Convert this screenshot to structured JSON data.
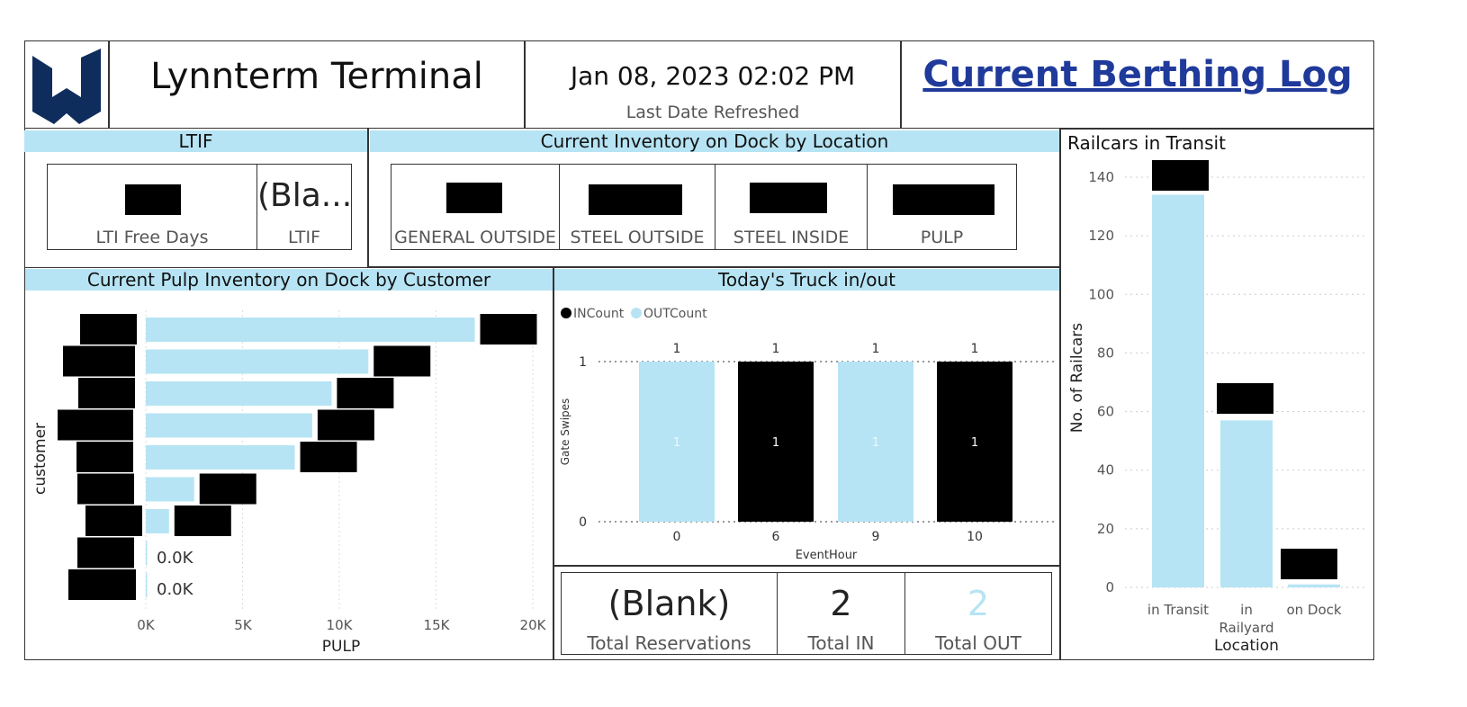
{
  "header": {
    "terminal_name": "Lynnterm Terminal",
    "datetime": "Jan 08, 2023 02:02 PM",
    "datetime_caption": "Last Date Refreshed",
    "berthing_link": "Current Berthing Log",
    "logo_color": "#0f2d5c"
  },
  "ltif": {
    "title": "LTIF",
    "free_days_label": "LTI Free Days",
    "ltif_value": "(Bla...",
    "ltif_label": "LTIF"
  },
  "inventory": {
    "title": "Current Inventory on Dock by Location",
    "locations": [
      "GENERAL OUTSIDE",
      "STEEL OUTSIDE",
      "STEEL INSIDE",
      "PULP"
    ]
  },
  "pulp": {
    "title": "Current Pulp Inventory on Dock by Customer",
    "ylabel": "customer",
    "xlabel": "PULP",
    "xticks": [
      "0K",
      "5K",
      "10K",
      "15K",
      "20K"
    ],
    "zero_labels": [
      "0.0K",
      "0.0K"
    ]
  },
  "truck": {
    "title": "Today's Truck in/out",
    "legend_in": "INCount",
    "legend_out": "OUTCount",
    "ylabel": "Gate Swipes",
    "xlabel": "EventHour"
  },
  "totals": {
    "reservations_value": "(Blank)",
    "reservations_label": "Total Reservations",
    "in_value": "2",
    "in_label": "Total IN",
    "out_value": "2",
    "out_label": "Total OUT"
  },
  "railcars": {
    "title": "Railcars in Transit",
    "ylabel": "No. of Railcars",
    "xlabel": "Location"
  },
  "colors": {
    "light_blue": "#b6e4f4",
    "black": "#000000"
  },
  "chart_data": [
    {
      "type": "bar",
      "orientation": "horizontal",
      "title": "Current Pulp Inventory on Dock by Customer",
      "xlabel": "PULP",
      "ylabel": "customer",
      "values": [
        17000,
        11500,
        9600,
        8600,
        7700,
        2500,
        1200,
        0,
        0
      ],
      "xlim": [
        0,
        20000
      ],
      "color": "#b6e4f4"
    },
    {
      "type": "bar",
      "title": "Today's Truck in/out",
      "xlabel": "EventHour",
      "ylabel": "Gate Swipes",
      "categories": [
        "0",
        "6",
        "9",
        "10"
      ],
      "series": [
        {
          "name": "INCount",
          "values": [
            0,
            1,
            0,
            1
          ],
          "color": "#000000"
        },
        {
          "name": "OUTCount",
          "values": [
            1,
            0,
            1,
            0
          ],
          "color": "#b6e4f4"
        }
      ],
      "ylim": [
        0,
        1
      ],
      "yticks": [
        0,
        1
      ],
      "legend": "top-left"
    },
    {
      "type": "bar",
      "title": "Railcars in Transit",
      "xlabel": "Location",
      "ylabel": "No. of Railcars",
      "categories": [
        "in Transit",
        "in Railyard",
        "on Dock"
      ],
      "values": [
        134,
        57,
        1
      ],
      "ylim": [
        0,
        145
      ],
      "yticks": [
        0,
        20,
        40,
        60,
        80,
        100,
        120,
        140
      ],
      "color": "#b6e4f4"
    }
  ]
}
